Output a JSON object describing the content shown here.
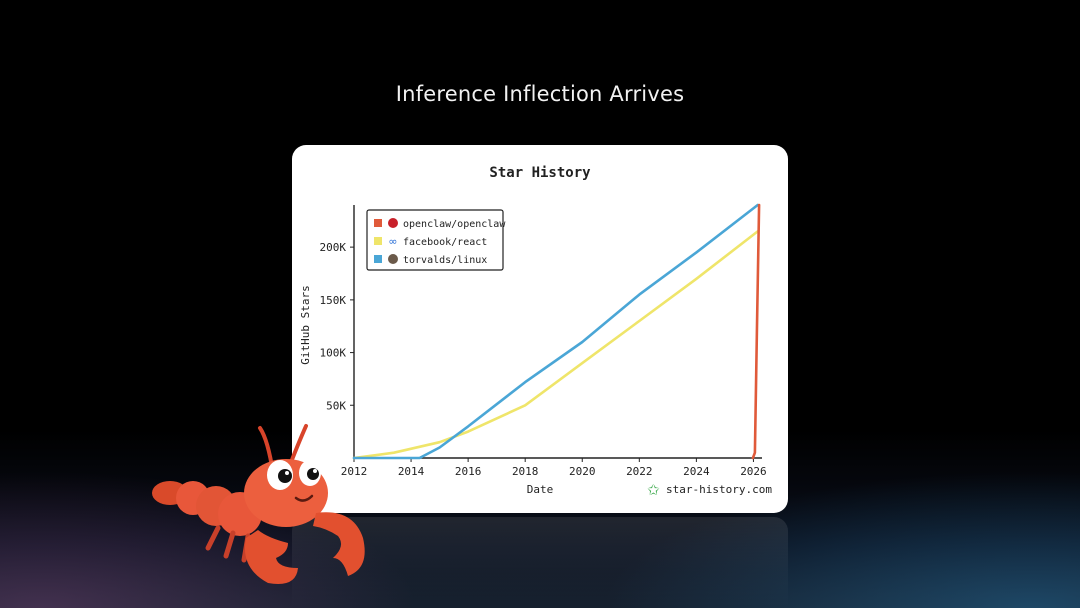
{
  "headline": "Inference Inflection Arrives",
  "branding": {
    "text": "star-history.com"
  },
  "colors": {
    "openclaw": "#e05a3a",
    "react": "#efe56a",
    "linux": "#4aa6d6",
    "axis": "#222222"
  },
  "chart_data": {
    "type": "line",
    "title": "Star History",
    "xlabel": "Date",
    "ylabel": "GitHub Stars",
    "x_ticks": [
      "2012",
      "2014",
      "2016",
      "2018",
      "2020",
      "2022",
      "2024",
      "2026"
    ],
    "y_ticks": [
      {
        "value": 50000,
        "label": "50K"
      },
      {
        "value": 100000,
        "label": "100K"
      },
      {
        "value": 150000,
        "label": "150K"
      },
      {
        "value": 200000,
        "label": "200K"
      }
    ],
    "xlim": [
      2012.0,
      2026.3
    ],
    "ylim": [
      0,
      240000
    ],
    "legend_position": "top-left",
    "series": [
      {
        "name": "openclaw/openclaw",
        "color": "#e05a3a",
        "points": [
          [
            2025.98,
            0
          ],
          [
            2026.05,
            5000
          ],
          [
            2026.12,
            120000
          ],
          [
            2026.2,
            240000
          ]
        ]
      },
      {
        "name": "facebook/react",
        "color": "#efe56a",
        "points": [
          [
            2012,
            0
          ],
          [
            2013.4,
            5000
          ],
          [
            2015,
            15000
          ],
          [
            2016,
            25000
          ],
          [
            2018,
            50000
          ],
          [
            2020,
            90000
          ],
          [
            2022,
            130000
          ],
          [
            2024,
            170000
          ],
          [
            2026.15,
            215000
          ]
        ]
      },
      {
        "name": "torvalds/linux",
        "color": "#4aa6d6",
        "points": [
          [
            2012,
            0
          ],
          [
            2014.3,
            0
          ],
          [
            2015,
            10000
          ],
          [
            2016,
            30000
          ],
          [
            2018,
            72000
          ],
          [
            2020,
            110000
          ],
          [
            2022,
            155000
          ],
          [
            2024,
            195000
          ],
          [
            2026.15,
            240000
          ]
        ]
      }
    ]
  }
}
